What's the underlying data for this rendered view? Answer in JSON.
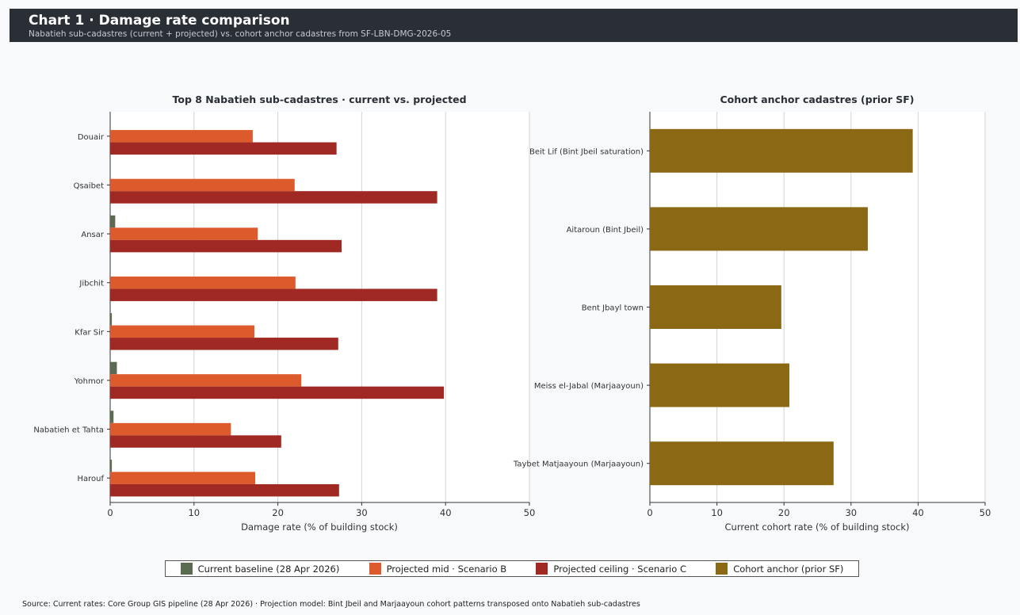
{
  "header": {
    "title": "Chart 1  ·  Damage rate comparison",
    "subtitle": "Nabatieh sub-cadastres (current + projected) vs. cohort anchor cadastres from SF-LBN-DMG-2026-05"
  },
  "colors": {
    "current": "#5b6b4f",
    "mid": "#dc5a2c",
    "ceiling": "#a02a23",
    "cohort": "#8b6914",
    "header_bg": "#2a2e35",
    "plot_bg": "#ffffff",
    "grid": "#d3d3d3"
  },
  "chart_data": [
    {
      "type": "bar",
      "orientation": "horizontal",
      "title": "Top 8 Nabatieh sub-cadastres  ·  current vs. projected",
      "xlabel": "Damage rate  (% of building stock)",
      "ylabel": "",
      "xlim": [
        0,
        50
      ],
      "xticks": [
        0,
        10,
        20,
        30,
        40,
        50
      ],
      "grid": "vertical",
      "categories": [
        "Douair",
        "Qsaibet",
        "Ansar",
        "Jibchit",
        "Kfar Sir",
        "Yohmor",
        "Nabatieh et Tahta",
        "Harouf"
      ],
      "series": [
        {
          "name": "Current baseline (28 Apr 2026)",
          "values": [
            0.0,
            0.0,
            0.6,
            0.0,
            0.2,
            0.8,
            0.4,
            0.2
          ]
        },
        {
          "name": "Projected mid  ·  Scenario B",
          "values": [
            17.0,
            22.0,
            17.6,
            22.1,
            17.2,
            22.8,
            14.4,
            17.3
          ]
        },
        {
          "name": "Projected ceiling  ·  Scenario C",
          "values": [
            27.0,
            39.0,
            27.6,
            39.0,
            27.2,
            39.8,
            20.4,
            27.3
          ]
        }
      ]
    },
    {
      "type": "bar",
      "orientation": "horizontal",
      "title": "Cohort anchor cadastres (prior SF)",
      "xlabel": "Current cohort rate  (% of building stock)",
      "ylabel": "",
      "xlim": [
        0,
        50
      ],
      "xticks": [
        0,
        10,
        20,
        30,
        40,
        50
      ],
      "grid": "vertical",
      "categories": [
        "Beit Lif (Bint Jbeil saturation)",
        "Aitaroun (Bint Jbeil)",
        "Bent Jbayl town",
        "Meiss el-Jabal (Marjaayoun)",
        "Taybet Matjaayoun (Marjaayoun)"
      ],
      "series": [
        {
          "name": "Cohort anchor (prior SF)",
          "values": [
            39.2,
            32.5,
            19.6,
            20.8,
            27.4
          ]
        }
      ]
    }
  ],
  "legend": {
    "placement": "bottom-center",
    "items": [
      {
        "label": "Current baseline (28 Apr 2026)",
        "color": "#5b6b4f"
      },
      {
        "label": "Projected mid  ·  Scenario B",
        "color": "#dc5a2c"
      },
      {
        "label": "Projected ceiling  ·  Scenario C",
        "color": "#a02a23"
      },
      {
        "label": "Cohort anchor (prior SF)",
        "color": "#8b6914"
      }
    ]
  },
  "source": "Source: Current rates: Core Group GIS pipeline (28 Apr 2026)  ·  Projection model: Bint Jbeil and Marjaayoun cohort patterns transposed onto Nabatieh sub-cadastres"
}
